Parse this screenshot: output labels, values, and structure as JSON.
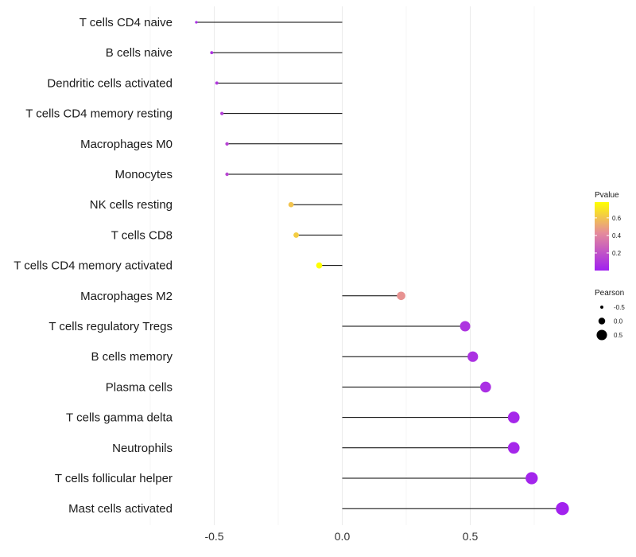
{
  "chart_data": {
    "type": "lollipop",
    "title": "",
    "xlabel": "",
    "ylabel": "",
    "xlim": [
      -0.7,
      0.9
    ],
    "x_ticks": [
      -0.5,
      0.0,
      0.5
    ],
    "x_tick_labels": [
      "-0.5",
      "0.0",
      "0.5"
    ],
    "grid": true,
    "categories": [
      "T cells CD4 naive",
      "B cells naive",
      "Dendritic cells activated",
      "T cells CD4 memory resting",
      "Macrophages M0",
      "Monocytes",
      "NK cells resting",
      "T cells CD8",
      "T cells CD4 memory activated",
      "Macrophages M2",
      "T cells regulatory  Tregs ",
      "B cells memory",
      "Plasma cells",
      "T cells gamma delta",
      "Neutrophils",
      "T cells follicular helper",
      "Mast cells activated"
    ],
    "values": [
      -0.57,
      -0.51,
      -0.49,
      -0.47,
      -0.45,
      -0.45,
      -0.2,
      -0.18,
      -0.09,
      0.23,
      0.48,
      0.51,
      0.56,
      0.67,
      0.67,
      0.74,
      0.86
    ],
    "pvalues": [
      0.06,
      0.08,
      0.1,
      0.12,
      0.14,
      0.15,
      0.6,
      0.63,
      0.78,
      0.45,
      0.08,
      0.07,
      0.06,
      0.03,
      0.03,
      0.02,
      0.01
    ],
    "color_legend": {
      "title": "Pvalue",
      "min": 0.0,
      "max": 0.78,
      "ticks": [
        0.6,
        0.4,
        0.2
      ],
      "tick_labels": [
        "0.6",
        "0.4",
        "0.2"
      ],
      "low_color": "#a020f0",
      "mid_color": "#e58b9a",
      "high_color": "#ffff00"
    },
    "size_legend": {
      "title": "Pearson",
      "values": [
        -0.5,
        0.0,
        0.5
      ],
      "labels": [
        "-0.5",
        "0.0",
        "0.5"
      ]
    },
    "legend_position": "right"
  }
}
